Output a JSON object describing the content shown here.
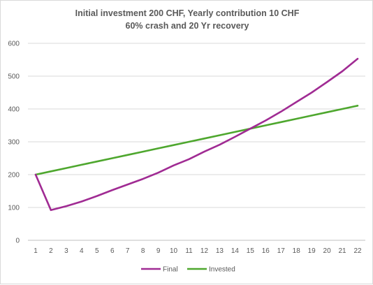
{
  "chart_data": {
    "type": "line",
    "title": "Initial investment 200 CHF, Yearly contribution 10 CHF",
    "subtitle": "60% crash and 20 Yr recovery",
    "xlabel": "",
    "ylabel": "",
    "x": [
      1,
      2,
      3,
      4,
      5,
      6,
      7,
      8,
      9,
      10,
      11,
      12,
      13,
      14,
      15,
      16,
      17,
      18,
      19,
      20,
      21,
      22
    ],
    "ylim": [
      0,
      600
    ],
    "yticks": [
      0,
      100,
      200,
      300,
      400,
      500,
      600
    ],
    "grid": "horizontal",
    "legend": "bottom",
    "series": [
      {
        "name": "Final",
        "color": "#a02b93",
        "values": [
          200,
          92,
          104,
          118,
          135,
          153,
          170,
          187,
          206,
          228,
          247,
          270,
          291,
          315,
          340,
          365,
          392,
          421,
          450,
          482,
          515,
          553
        ]
      },
      {
        "name": "Invested",
        "color": "#4ea72e",
        "values": [
          200,
          210,
          220,
          230,
          240,
          250,
          260,
          270,
          280,
          290,
          300,
          310,
          320,
          330,
          340,
          350,
          360,
          370,
          380,
          390,
          400,
          410
        ]
      }
    ]
  }
}
